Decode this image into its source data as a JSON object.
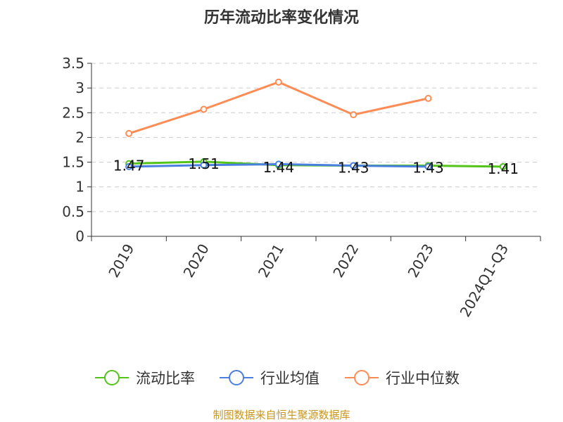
{
  "chart_data": {
    "type": "line",
    "title": "历年流动比率变化情况",
    "categories": [
      "2019",
      "2020",
      "2021",
      "2022",
      "2023",
      "2024Q1-Q3"
    ],
    "ylim": [
      0,
      3.5
    ],
    "yticks": [
      "0",
      "0.5",
      "1",
      "1.5",
      "2",
      "2.5",
      "3",
      "3.5"
    ],
    "grid": true,
    "legend_position": "bottom",
    "series": [
      {
        "name": "流动比率",
        "color": "#52c41a",
        "values": [
          1.47,
          1.51,
          1.44,
          1.43,
          1.43,
          1.41
        ],
        "labels": [
          "1.47",
          "1.51",
          "1.44",
          "1.43",
          "1.43",
          "1.41"
        ]
      },
      {
        "name": "行业均值",
        "color": "#4a7fe0",
        "values": [
          1.41,
          1.44,
          1.46,
          1.43,
          1.41,
          null
        ]
      },
      {
        "name": "行业中位数",
        "color": "#ff8c55",
        "values": [
          2.08,
          2.57,
          3.12,
          2.46,
          2.79,
          null
        ]
      }
    ],
    "source": "制图数据来自恒生聚源数据库"
  }
}
